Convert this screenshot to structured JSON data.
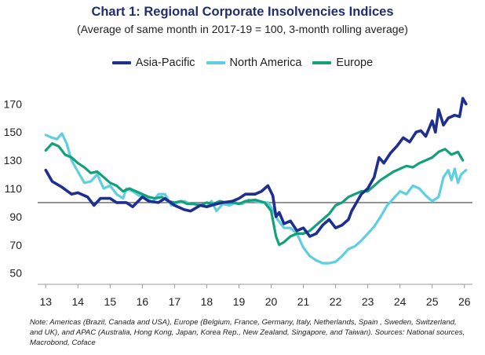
{
  "chart_data": {
    "type": "line",
    "title": "Chart 1: Regional Corporate Insolvencies Indices",
    "subtitle": "(Average of same month in 2017-19 = 100, 3-month rolling average)",
    "xlabel": "",
    "ylabel": "",
    "x_ticks": [
      "13",
      "14",
      "15",
      "16",
      "17",
      "18",
      "19",
      "20",
      "21",
      "22",
      "23",
      "24",
      "25",
      "26"
    ],
    "y_ticks": [
      50,
      70,
      90,
      110,
      130,
      150,
      170
    ],
    "ylim": [
      42,
      178
    ],
    "xlim": [
      12.75,
      26.25
    ],
    "reference_line": 100,
    "legend_position": "top-center",
    "grid": false,
    "series": [
      {
        "name": "Asia-Pacific",
        "color": "#1f2f8f",
        "points": [
          [
            13.0,
            123
          ],
          [
            13.2,
            115
          ],
          [
            13.5,
            111
          ],
          [
            13.8,
            106
          ],
          [
            14.0,
            107
          ],
          [
            14.3,
            104
          ],
          [
            14.5,
            98
          ],
          [
            14.7,
            103
          ],
          [
            15.0,
            103
          ],
          [
            15.2,
            100
          ],
          [
            15.5,
            100
          ],
          [
            15.7,
            97
          ],
          [
            16.0,
            104
          ],
          [
            16.2,
            101
          ],
          [
            16.5,
            100
          ],
          [
            16.7,
            103
          ],
          [
            17.0,
            98
          ],
          [
            17.3,
            95
          ],
          [
            17.5,
            94
          ],
          [
            17.8,
            98
          ],
          [
            18.0,
            97
          ],
          [
            18.3,
            99
          ],
          [
            18.5,
            100
          ],
          [
            18.8,
            101
          ],
          [
            19.0,
            103
          ],
          [
            19.2,
            106
          ],
          [
            19.5,
            106
          ],
          [
            19.7,
            108
          ],
          [
            19.9,
            112
          ],
          [
            20.05,
            105
          ],
          [
            20.15,
            90
          ],
          [
            20.25,
            93
          ],
          [
            20.4,
            85
          ],
          [
            20.6,
            87
          ],
          [
            20.8,
            80
          ],
          [
            21.0,
            82
          ],
          [
            21.2,
            76
          ],
          [
            21.4,
            78
          ],
          [
            21.6,
            84
          ],
          [
            21.8,
            88
          ],
          [
            22.0,
            82
          ],
          [
            22.2,
            84
          ],
          [
            22.4,
            88
          ],
          [
            22.5,
            94
          ],
          [
            22.65,
            100
          ],
          [
            22.8,
            106
          ],
          [
            23.0,
            110
          ],
          [
            23.2,
            118
          ],
          [
            23.35,
            132
          ],
          [
            23.5,
            128
          ],
          [
            23.7,
            135
          ],
          [
            23.9,
            140
          ],
          [
            24.1,
            146
          ],
          [
            24.3,
            143
          ],
          [
            24.5,
            150
          ],
          [
            24.65,
            151
          ],
          [
            24.8,
            147
          ],
          [
            25.0,
            158
          ],
          [
            25.1,
            150
          ],
          [
            25.2,
            166
          ],
          [
            25.35,
            155
          ],
          [
            25.5,
            160
          ],
          [
            25.7,
            162
          ],
          [
            25.85,
            161
          ],
          [
            25.95,
            174
          ],
          [
            26.05,
            170
          ]
        ]
      },
      {
        "name": "North America",
        "color": "#5fcfe0",
        "points": [
          [
            13.0,
            148
          ],
          [
            13.2,
            146
          ],
          [
            13.35,
            145
          ],
          [
            13.5,
            149
          ],
          [
            13.65,
            142
          ],
          [
            13.8,
            130
          ],
          [
            14.0,
            122
          ],
          [
            14.2,
            114
          ],
          [
            14.4,
            115
          ],
          [
            14.6,
            120
          ],
          [
            14.8,
            110
          ],
          [
            15.0,
            112
          ],
          [
            15.2,
            106
          ],
          [
            15.4,
            103
          ],
          [
            15.5,
            110
          ],
          [
            15.7,
            108
          ],
          [
            15.9,
            105
          ],
          [
            16.1,
            104
          ],
          [
            16.3,
            100
          ],
          [
            16.5,
            106
          ],
          [
            16.7,
            106
          ],
          [
            16.9,
            98
          ],
          [
            17.1,
            100
          ],
          [
            17.3,
            101
          ],
          [
            17.5,
            99
          ],
          [
            17.7,
            99
          ],
          [
            17.9,
            98
          ],
          [
            18.0,
            97
          ],
          [
            18.15,
            101
          ],
          [
            18.3,
            94
          ],
          [
            18.5,
            99
          ],
          [
            18.7,
            98
          ],
          [
            18.9,
            100
          ],
          [
            19.1,
            99
          ],
          [
            19.3,
            102
          ],
          [
            19.5,
            101
          ],
          [
            19.7,
            100
          ],
          [
            19.9,
            100
          ],
          [
            20.05,
            95
          ],
          [
            20.2,
            88
          ],
          [
            20.4,
            82
          ],
          [
            20.6,
            82
          ],
          [
            20.8,
            78
          ],
          [
            21.0,
            68
          ],
          [
            21.2,
            62
          ],
          [
            21.4,
            59
          ],
          [
            21.6,
            57
          ],
          [
            21.8,
            57
          ],
          [
            22.0,
            58
          ],
          [
            22.2,
            62
          ],
          [
            22.4,
            67
          ],
          [
            22.6,
            69
          ],
          [
            22.8,
            73
          ],
          [
            23.0,
            78
          ],
          [
            23.2,
            83
          ],
          [
            23.4,
            90
          ],
          [
            23.6,
            98
          ],
          [
            23.8,
            103
          ],
          [
            24.0,
            108
          ],
          [
            24.2,
            106
          ],
          [
            24.4,
            112
          ],
          [
            24.6,
            110
          ],
          [
            24.8,
            105
          ],
          [
            25.0,
            101
          ],
          [
            25.2,
            104
          ],
          [
            25.35,
            118
          ],
          [
            25.5,
            123
          ],
          [
            25.6,
            116
          ],
          [
            25.7,
            124
          ],
          [
            25.8,
            114
          ],
          [
            25.9,
            120
          ],
          [
            26.05,
            123
          ]
        ]
      },
      {
        "name": "Europe",
        "color": "#14a07a",
        "points": [
          [
            13.0,
            137
          ],
          [
            13.2,
            142
          ],
          [
            13.4,
            140
          ],
          [
            13.6,
            134
          ],
          [
            13.8,
            132
          ],
          [
            14.0,
            128
          ],
          [
            14.2,
            125
          ],
          [
            14.4,
            121
          ],
          [
            14.6,
            122
          ],
          [
            14.8,
            118
          ],
          [
            15.0,
            114
          ],
          [
            15.2,
            112
          ],
          [
            15.4,
            108
          ],
          [
            15.6,
            110
          ],
          [
            15.8,
            108
          ],
          [
            16.0,
            106
          ],
          [
            16.2,
            104
          ],
          [
            16.4,
            103
          ],
          [
            16.6,
            104
          ],
          [
            16.8,
            101
          ],
          [
            17.0,
            100
          ],
          [
            17.2,
            101
          ],
          [
            17.4,
            99
          ],
          [
            17.6,
            99
          ],
          [
            17.8,
            98
          ],
          [
            18.0,
            100
          ],
          [
            18.2,
            99
          ],
          [
            18.4,
            101
          ],
          [
            18.6,
            100
          ],
          [
            18.8,
            100
          ],
          [
            19.0,
            99
          ],
          [
            19.2,
            101
          ],
          [
            19.5,
            102
          ],
          [
            19.8,
            100
          ],
          [
            20.0,
            94
          ],
          [
            20.15,
            76
          ],
          [
            20.25,
            70
          ],
          [
            20.4,
            72
          ],
          [
            20.6,
            76
          ],
          [
            20.8,
            78
          ],
          [
            21.0,
            78
          ],
          [
            21.2,
            80
          ],
          [
            21.4,
            84
          ],
          [
            21.6,
            88
          ],
          [
            21.8,
            92
          ],
          [
            22.0,
            98
          ],
          [
            22.2,
            100
          ],
          [
            22.4,
            104
          ],
          [
            22.6,
            106
          ],
          [
            22.8,
            108
          ],
          [
            23.0,
            108
          ],
          [
            23.2,
            112
          ],
          [
            23.4,
            116
          ],
          [
            23.6,
            119
          ],
          [
            23.8,
            122
          ],
          [
            24.0,
            124
          ],
          [
            24.2,
            126
          ],
          [
            24.4,
            125
          ],
          [
            24.6,
            128
          ],
          [
            24.8,
            130
          ],
          [
            25.0,
            132
          ],
          [
            25.2,
            136
          ],
          [
            25.4,
            138
          ],
          [
            25.6,
            134
          ],
          [
            25.8,
            136
          ],
          [
            25.95,
            130
          ]
        ]
      }
    ]
  },
  "note": "Note: Americas (Brazil, Canada and USA), Europe (Belgium, France, Germany, Italy, Netherlands, Spain , Sweden, Switzerland, and UK), and APAC (Australia, Hong Kong, Japan, Korea Rep., New Zealand, Singapore, and Taiwan). Sources: National sources, Macrobond, Coface"
}
